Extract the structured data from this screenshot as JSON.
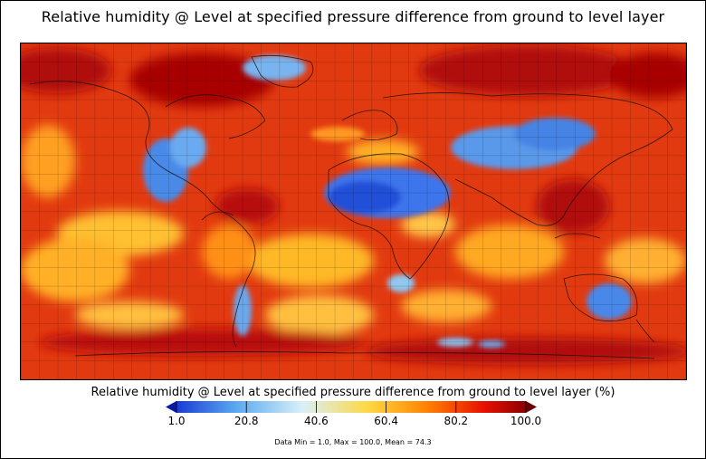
{
  "title": "Relative humidity @ Level at specified pressure difference from ground to level layer",
  "colorbar": {
    "label": "Relative humidity @ Level at specified pressure difference from ground to level layer (%)",
    "min": 1.0,
    "max": 100.0,
    "ticks": [
      "1.0",
      "20.8",
      "40.6",
      "60.4",
      "80.2",
      "100.0"
    ],
    "colors": [
      "#1a3bd6",
      "#5aa8f0",
      "#d8f0f8",
      "#ffd840",
      "#ff8000",
      "#e81000",
      "#8a0000"
    ],
    "under_color": "#0a1aa8",
    "over_color": "#6a0000"
  },
  "stats": "Data Min = 1.0, Max = 100.0, Mean = 74.3",
  "map": {
    "projection": "equirectangular",
    "background_color": "#e83a10",
    "dry_color": "#3f78ee",
    "moist_color": "#ffb020",
    "wet_color": "#a80808"
  }
}
